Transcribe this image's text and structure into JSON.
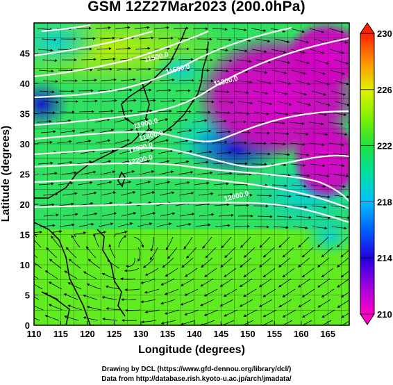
{
  "title": "GSM 12Z27Mar2023 (200.0hPa)",
  "x_axis": {
    "label": "Longitude (degrees)",
    "range": [
      110,
      169
    ],
    "ticks": [
      "110",
      "115",
      "120",
      "125",
      "130",
      "135",
      "140",
      "145",
      "150",
      "155",
      "160",
      "165"
    ]
  },
  "y_axis": {
    "label": "Latitude (degrees)",
    "range": [
      0,
      50
    ],
    "ticks": [
      "0",
      "5",
      "10",
      "15",
      "20",
      "25",
      "30",
      "35",
      "40",
      "45"
    ]
  },
  "colorbar": {
    "range": [
      210,
      230
    ],
    "labels": [
      "210",
      "214",
      "218",
      "222",
      "226",
      "230"
    ]
  },
  "contour_labels": [
    {
      "text": "12000.0",
      "lon": 148,
      "lat": 21
    },
    {
      "text": "12200.0",
      "lon": 130,
      "lat": 27
    },
    {
      "text": "12300.0",
      "lon": 130,
      "lat": 29
    },
    {
      "text": "11900.0",
      "lon": 131,
      "lat": 33
    },
    {
      "text": "11800.0",
      "lon": 132,
      "lat": 31
    },
    {
      "text": "11300.0",
      "lon": 146,
      "lat": 40
    },
    {
      "text": "11500.0",
      "lon": 137,
      "lat": 42
    },
    {
      "text": "11500.0",
      "lon": 133,
      "lat": 44
    }
  ],
  "footer": {
    "line1": "Drawing by DCL (https://www.gfd-dennou.org/library/dcl/)",
    "line2": "Data from http://database.rish.kyoto-u.ac.jp/arch/jmadata/"
  }
}
